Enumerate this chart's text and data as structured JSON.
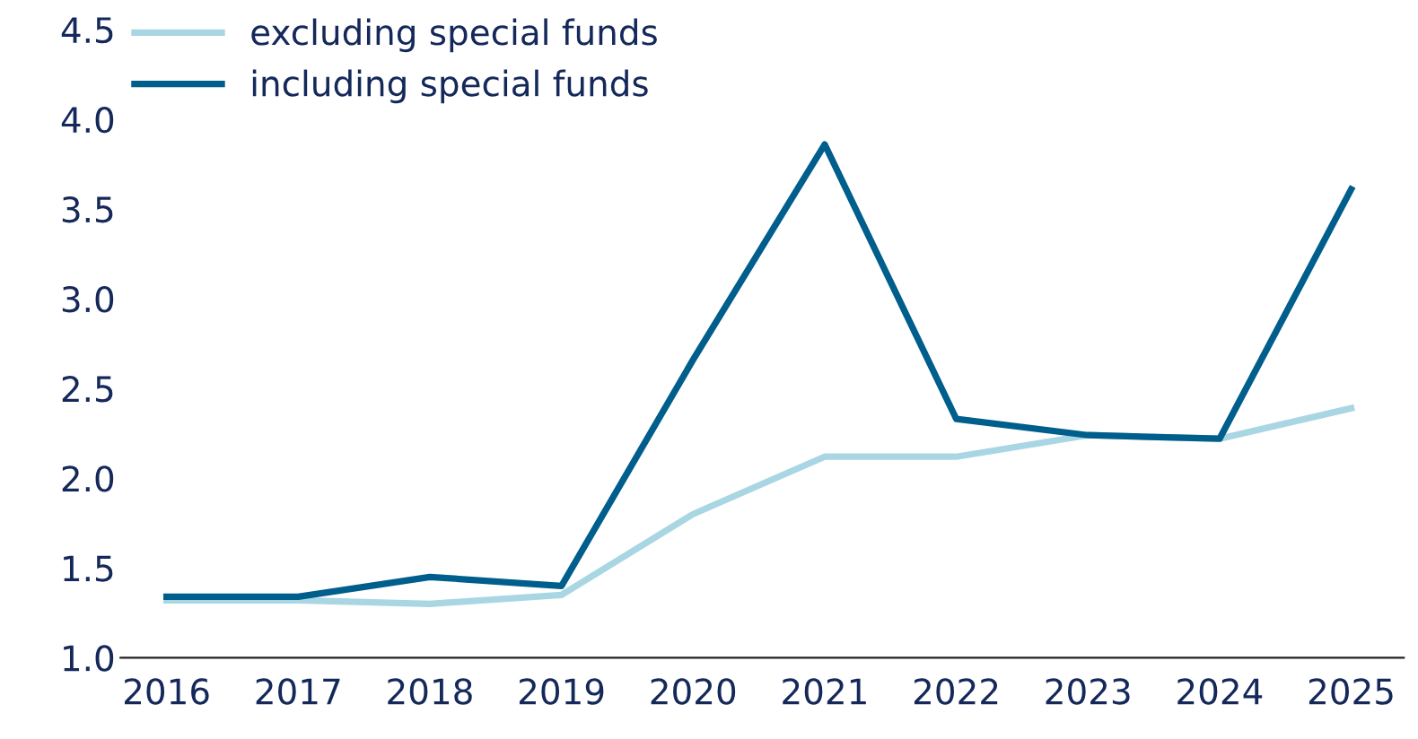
{
  "chart_data": {
    "type": "line",
    "categories": [
      "2016",
      "2017",
      "2018",
      "2019",
      "2020",
      "2021",
      "2022",
      "2023",
      "2024",
      "2025"
    ],
    "series": [
      {
        "name": "excluding special funds",
        "color": "#a9d6e3",
        "values": [
          1.32,
          1.32,
          1.3,
          1.35,
          1.8,
          2.12,
          2.12,
          2.24,
          2.22,
          2.39
        ]
      },
      {
        "name": "including special funds",
        "color": "#005e8c",
        "values": [
          1.34,
          1.34,
          1.45,
          1.4,
          2.66,
          3.86,
          2.33,
          2.24,
          2.22,
          3.61
        ]
      }
    ],
    "ylim": [
      1.0,
      4.5
    ],
    "yticks": [
      {
        "value": 1.0,
        "label": "1.0"
      },
      {
        "value": 1.5,
        "label": "1.5"
      },
      {
        "value": 2.0,
        "label": "2.0"
      },
      {
        "value": 2.5,
        "label": "2.5"
      },
      {
        "value": 3.0,
        "label": "3.0"
      },
      {
        "value": 3.5,
        "label": "3.5"
      },
      {
        "value": 4.0,
        "label": "4.0"
      },
      {
        "value": 4.5,
        "label": "4.5"
      }
    ],
    "grid": false,
    "legend": "top left",
    "marker": "none",
    "line_style": "solid"
  }
}
